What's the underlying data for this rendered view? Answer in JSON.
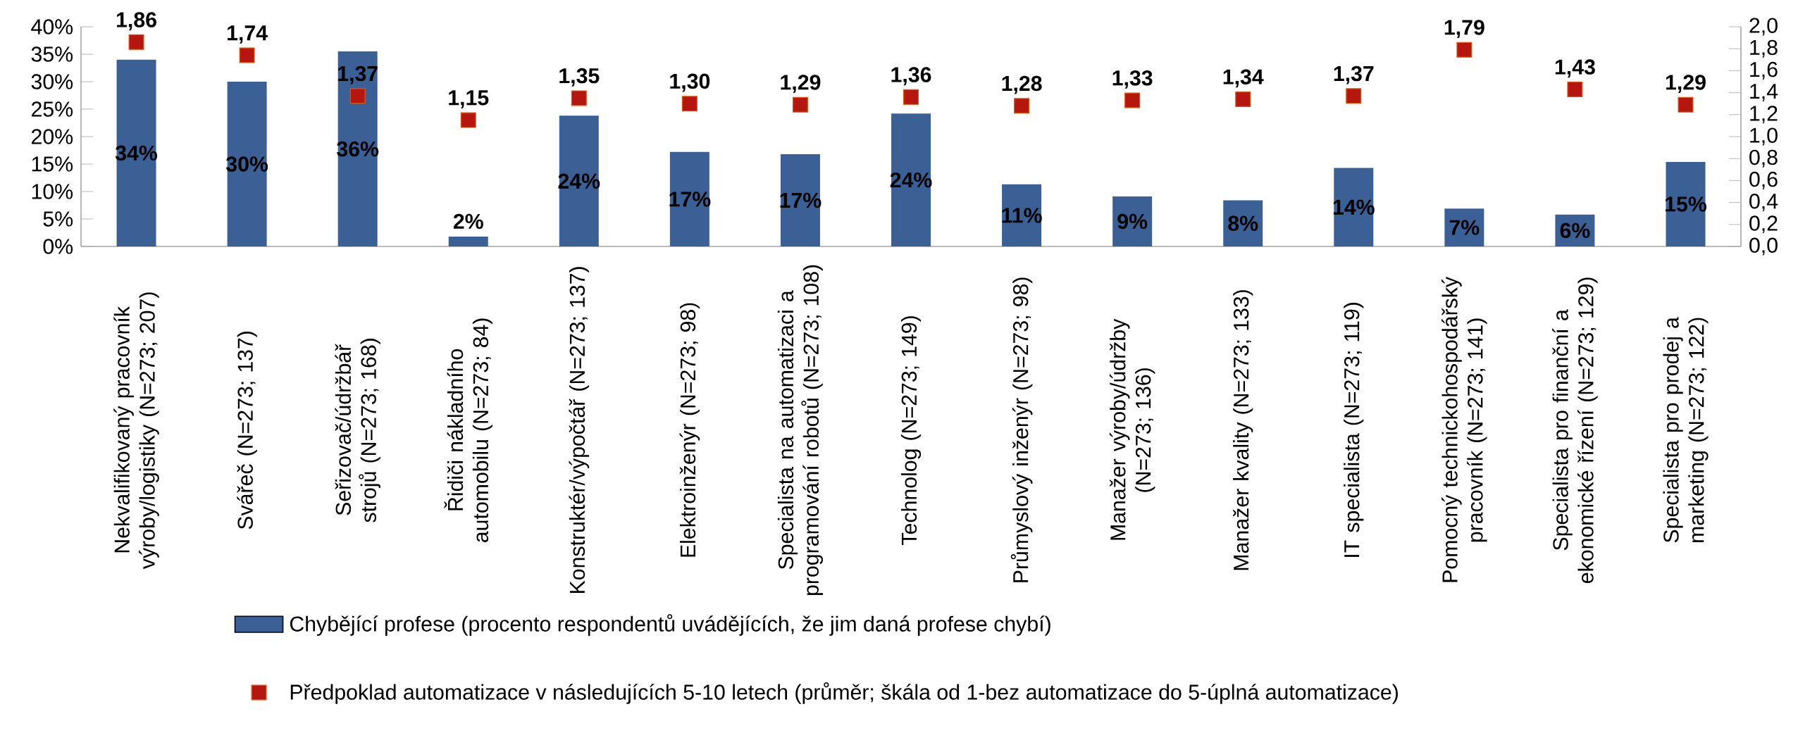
{
  "chart_data": {
    "type": "bar",
    "categories": [
      "Nekvalifikovaný pracovník výroby/logistiky (N=273; 207)",
      "Svářeč (N=273; 137)",
      "Seřizovač/údržbář strojů (N=273; 168)",
      "Řidiči nákladního automobilu (N=273; 84)",
      "Konstruktér/výpočtář (N=273; 137)",
      "Elektroinženýr (N=273; 98)",
      "Specialista na automatizaci a programování robotů (N=273; 108)",
      "Technolog (N=273; 149)",
      "Průmyslový inženýr (N=273; 98)",
      "Manažer výroby/údržby (N=273; 136)",
      "Manažer kvality (N=273; 133)",
      "IT specialista (N=273; 119)",
      "Pomocný technickohospodářský pracovník (N=273; 141)",
      "Specialista pro finanční a ekonomické řízení (N=273; 129)",
      "Specialista pro prodej a marketing (N=273; 122)"
    ],
    "series": [
      {
        "name": "Chybějící profese (procento respondentů uvádějících, že jim daná profese chybí)",
        "color": "#3a6096",
        "values": [
          34.0,
          30.0,
          35.5,
          1.8,
          23.8,
          17.2,
          16.8,
          24.2,
          11.3,
          9.1,
          8.4,
          14.3,
          6.9,
          5.8,
          15.4
        ],
        "value_labels": [
          "34%",
          "30%",
          "36%",
          "2%",
          "24%",
          "17%",
          "17%",
          "24%",
          "11%",
          "9%",
          "8%",
          "14%",
          "7%",
          "6%",
          "15%"
        ]
      },
      {
        "name": "Předpoklad automatizace v následujících 5-10 letech (průměr; škála od 1-bez automatizace do 5-úplná automatizace)",
        "type": "scatter",
        "axis": "y2",
        "marker": "square",
        "color": "#b5160f",
        "values": [
          1.86,
          1.74,
          1.37,
          1.15,
          1.35,
          1.3,
          1.29,
          1.36,
          1.28,
          1.33,
          1.34,
          1.37,
          1.79,
          1.43,
          1.29
        ],
        "value_labels": [
          "1,86",
          "1,74",
          "1,37",
          "1,15",
          "1,35",
          "1,30",
          "1,29",
          "1,36",
          "1,28",
          "1,33",
          "1,34",
          "1,37",
          "1,79",
          "1,43",
          "1,29"
        ]
      }
    ],
    "ylim": [
      0,
      40
    ],
    "yticks": [
      {
        "value": 0,
        "label": "0%"
      },
      {
        "value": 5,
        "label": "5%"
      },
      {
        "value": 10,
        "label": "10%"
      },
      {
        "value": 15,
        "label": "15%"
      },
      {
        "value": 20,
        "label": "20%"
      },
      {
        "value": 25,
        "label": "25%"
      },
      {
        "value": 30,
        "label": "30%"
      },
      {
        "value": 35,
        "label": "35%"
      },
      {
        "value": 40,
        "label": "40%"
      }
    ],
    "y2lim": [
      0,
      2
    ],
    "y2ticks": [
      {
        "value": 0,
        "label": "0,0"
      },
      {
        "value": 0.2,
        "label": "0,2"
      },
      {
        "value": 0.4,
        "label": "0,4"
      },
      {
        "value": 0.6,
        "label": "0,6"
      },
      {
        "value": 0.8,
        "label": "0,8"
      },
      {
        "value": 1.0,
        "label": "1,0"
      },
      {
        "value": 1.2,
        "label": "1,2"
      },
      {
        "value": 1.4,
        "label": "1,4"
      },
      {
        "value": 1.6,
        "label": "1,6"
      },
      {
        "value": 1.8,
        "label": "1,8"
      },
      {
        "value": 2.0,
        "label": "2,0"
      }
    ],
    "legend": "bottom"
  }
}
